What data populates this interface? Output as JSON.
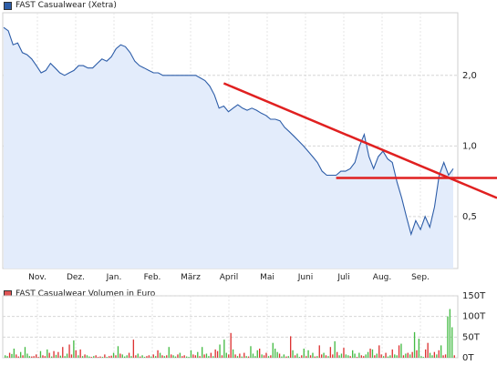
{
  "chart_data": [
    {
      "type": "line",
      "legend": "FAST Casualwear (Xetra)",
      "color": "#2d5da8",
      "fill": "#e3ecfb",
      "scale": "log",
      "y_ticks": [
        {
          "v": 2.0,
          "label": "2,0"
        },
        {
          "v": 1.0,
          "label": "1,0"
        },
        {
          "v": 0.5,
          "label": "0,5"
        }
      ],
      "ylim": [
        0.3,
        3.7
      ],
      "x_ticks": [
        "Nov.",
        "Dez.",
        "Jan.",
        "Feb.",
        "März",
        "April",
        "Mai",
        "Juni",
        "Juli",
        "Aug.",
        "Sep."
      ],
      "grid": true,
      "series": [
        {
          "values": [
            3.2,
            3.1,
            2.7,
            2.75,
            2.5,
            2.45,
            2.35,
            2.2,
            2.05,
            2.1,
            2.25,
            2.15,
            2.05,
            2.0,
            2.05,
            2.1,
            2.2,
            2.2,
            2.15,
            2.15,
            2.25,
            2.35,
            2.3,
            2.4,
            2.6,
            2.7,
            2.65,
            2.5,
            2.3,
            2.2,
            2.15,
            2.1,
            2.05,
            2.05,
            2.0,
            2.0,
            2.0,
            2.0,
            2.0,
            2.0,
            2.0,
            2.0,
            1.95,
            1.9,
            1.8,
            1.65,
            1.45,
            1.48,
            1.4,
            1.45,
            1.5,
            1.45,
            1.42,
            1.45,
            1.42,
            1.38,
            1.35,
            1.3,
            1.3,
            1.28,
            1.2,
            1.15,
            1.1,
            1.05,
            1.0,
            0.95,
            0.9,
            0.85,
            0.78,
            0.75,
            0.75,
            0.75,
            0.78,
            0.78,
            0.8,
            0.85,
            1.0,
            1.12,
            0.9,
            0.8,
            0.9,
            0.95,
            0.88,
            0.85,
            0.7,
            0.6,
            0.5,
            0.42,
            0.48,
            0.44,
            0.5,
            0.45,
            0.55,
            0.75,
            0.85,
            0.75,
            0.8
          ]
        }
      ],
      "annotations": [
        {
          "type": "trendline",
          "color": "#e02020",
          "from": [
            47,
            1.85
          ],
          "to": [
            108,
            0.6
          ]
        },
        {
          "type": "horizontal",
          "color": "#e02020",
          "value": 0.73,
          "from_index": 71,
          "to_index": 108
        }
      ]
    },
    {
      "type": "bar",
      "legend": "FAST Casualwear Volumen in Euro",
      "colors": {
        "up": "#44bb44",
        "down": "#dd3333",
        "neutral": "#888888"
      },
      "y_ticks": [
        {
          "v": 0,
          "label": "0T"
        },
        {
          "v": 50,
          "label": "50T"
        },
        {
          "v": 100,
          "label": "100T"
        },
        {
          "v": 150,
          "label": "150T"
        }
      ],
      "ylim": [
        0,
        150
      ],
      "grid": true,
      "values": [
        6,
        4,
        12,
        9,
        22,
        8,
        3,
        14,
        6,
        26,
        10,
        4,
        3,
        4,
        8,
        2,
        16,
        6,
        4,
        20,
        12,
        3,
        16,
        7,
        14,
        5,
        26,
        4,
        10,
        32,
        8,
        42,
        18,
        6,
        20,
        4,
        8,
        6,
        3,
        2,
        4,
        6,
        2,
        3,
        2,
        8,
        2,
        4,
        5,
        12,
        6,
        28,
        10,
        8,
        3,
        6,
        12,
        4,
        44,
        6,
        10,
        3,
        6,
        2,
        4,
        6,
        3,
        8,
        4,
        18,
        12,
        6,
        4,
        6,
        26,
        8,
        6,
        3,
        8,
        12,
        4,
        6,
        3,
        2,
        18,
        8,
        6,
        14,
        4,
        26,
        8,
        10,
        4,
        12,
        4,
        20,
        16,
        32,
        6,
        44,
        12,
        8,
        60,
        20,
        8,
        4,
        10,
        3,
        12,
        4,
        3,
        28,
        10,
        4,
        18,
        22,
        8,
        6,
        12,
        4,
        6,
        36,
        22,
        14,
        10,
        3,
        8,
        3,
        4,
        52,
        18,
        6,
        10,
        2,
        6,
        22,
        4,
        18,
        6,
        12,
        3,
        4,
        30,
        8,
        12,
        6,
        4,
        26,
        8,
        40,
        14,
        6,
        10,
        24,
        8,
        6,
        4,
        18,
        10,
        2,
        12,
        6,
        4,
        8,
        14,
        22,
        20,
        6,
        10,
        30,
        8,
        4,
        12,
        3,
        6,
        20,
        8,
        6,
        30,
        34,
        6,
        10,
        12,
        8,
        14,
        62,
        18,
        46,
        4,
        2,
        20,
        36,
        12,
        6,
        14,
        8,
        18,
        30,
        6,
        8,
        100,
        118,
        74,
        6
      ],
      "colors_seq": "ggrggrrgrgggrrrrgrrgrgrgrgrggrrgrgrgrggrgrrrgrgrrgrgrgggrgrrgrggrrgrgrgrgrgrggrgrrgggrrgrgrggrgrrgrggrrgrgrgrgrggggrgrrgrgggrggrgrgrggrgrgrgrgrrgrgrrgrggrggrggrgrrggrgrgrrgrggrggrgrgrgrgrgggrrggrgrgrrgggrgr"
    }
  ]
}
